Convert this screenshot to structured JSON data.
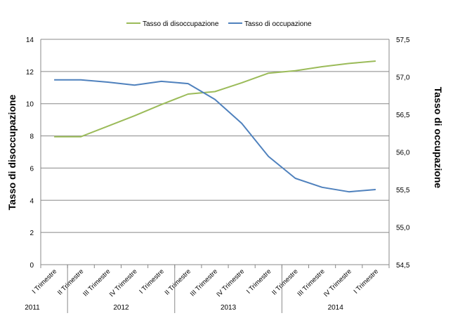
{
  "chart_data": {
    "type": "line",
    "categories": [
      "I Trimestre",
      "II Trimestre",
      "III Trimestre",
      "IV Trimestre",
      "I Trimestre",
      "II Trimestre",
      "III Trimestre",
      "IV Trimestre",
      "I Trimestre",
      "II Trimestre",
      "III Trimestre",
      "IV Trimestre",
      "I Trimestre"
    ],
    "years": [
      {
        "label": "2011",
        "start_index": 0,
        "end_index": 0
      },
      {
        "label": "2012",
        "start_index": 1,
        "end_index": 4
      },
      {
        "label": "2013",
        "start_index": 5,
        "end_index": 8
      },
      {
        "label": "2014",
        "start_index": 9,
        "end_index": 12
      }
    ],
    "series": [
      {
        "name": "Tasso di disoccupazione",
        "axis": "left",
        "color": "#9BBB59",
        "values": [
          7.95,
          7.95,
          8.6,
          9.25,
          9.95,
          10.6,
          10.75,
          11.3,
          11.9,
          12.05,
          12.3,
          12.5,
          12.65
        ]
      },
      {
        "name": "Tasso di occupazione",
        "axis": "right",
        "color": "#4F81BD",
        "values": [
          56.96,
          56.96,
          56.93,
          56.89,
          56.94,
          56.91,
          56.7,
          56.38,
          55.94,
          55.65,
          55.53,
          55.47,
          55.5
        ]
      }
    ],
    "y_left": {
      "label": "Tasso di disoccupazione",
      "min": 0,
      "max": 14,
      "ticks": [
        "0",
        "2",
        "4",
        "6",
        "8",
        "10",
        "12",
        "14"
      ]
    },
    "y_right": {
      "label": "Tasso di occupazione",
      "min": 54.5,
      "max": 57.5,
      "ticks": [
        "54,5",
        "55,0",
        "55,5",
        "56,0",
        "56,5",
        "57,0",
        "57,5"
      ]
    },
    "grid": true,
    "legend_position": "top"
  }
}
